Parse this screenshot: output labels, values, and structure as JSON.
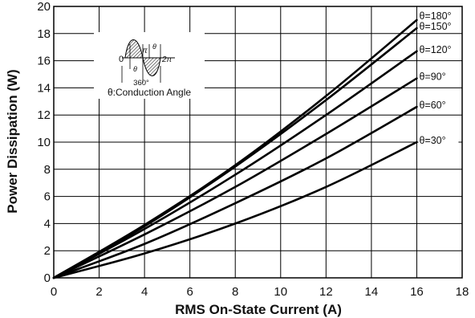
{
  "chart_data": {
    "type": "line",
    "title": "",
    "xlabel": "RMS On-State Current (A)",
    "ylabel": "Power Dissipation (W)",
    "xlim": [
      0,
      18
    ],
    "ylim": [
      0,
      20
    ],
    "xticks": [
      0,
      2,
      4,
      6,
      8,
      10,
      12,
      14,
      16,
      18
    ],
    "yticks": [
      0,
      2,
      4,
      6,
      8,
      10,
      12,
      14,
      16,
      18,
      20
    ],
    "grid": true,
    "series": [
      {
        "name": "θ=180°",
        "x": [
          0,
          4,
          8,
          12,
          16
        ],
        "y": [
          0,
          3.9,
          8.3,
          13.4,
          19.0
        ]
      },
      {
        "name": "θ=150°",
        "x": [
          0,
          4,
          8,
          12,
          16
        ],
        "y": [
          0,
          3.8,
          8.2,
          13.1,
          18.4
        ]
      },
      {
        "name": "θ=120°",
        "x": [
          0,
          4,
          8,
          12,
          16
        ],
        "y": [
          0,
          3.6,
          7.6,
          12.0,
          16.7
        ]
      },
      {
        "name": "θ=90°",
        "x": [
          0,
          4,
          8,
          12,
          16
        ],
        "y": [
          0,
          3.2,
          6.7,
          10.6,
          14.7
        ]
      },
      {
        "name": "θ=60°",
        "x": [
          0,
          4,
          8,
          12,
          16
        ],
        "y": [
          0,
          2.5,
          5.5,
          8.8,
          12.6
        ]
      },
      {
        "name": "θ=30°",
        "x": [
          0,
          4,
          8,
          12,
          16
        ],
        "y": [
          0,
          1.8,
          4.0,
          6.7,
          10.0
        ]
      }
    ]
  },
  "annotation": {
    "caption": "θ:Conduction Angle",
    "theta": "θ",
    "zero": "0",
    "pi": "π",
    "two_pi": "2π",
    "angle_360": "360°"
  },
  "colors": {
    "line": "#000000",
    "grid": "#000000",
    "background": "#ffffff",
    "annotation_box": "#ffffff"
  }
}
